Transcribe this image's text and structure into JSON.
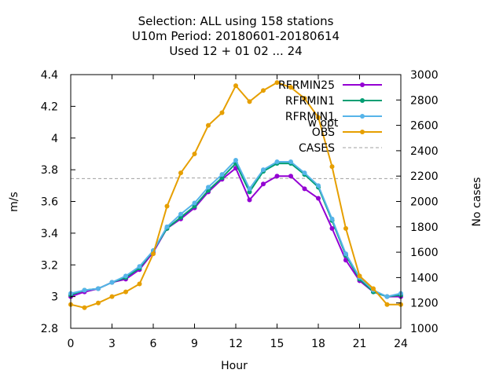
{
  "chart_data": {
    "type": "line",
    "title_lines": [
      "Selection: ALL using   158 stations",
      "U10m   Period: 20180601-20180614",
      "Used  12 + 01 02 ... 24"
    ],
    "xlabel": "Hour",
    "ylabel": "m/s",
    "y2label": "No cases",
    "xlim": [
      0,
      24
    ],
    "ylim": [
      2.8,
      4.4
    ],
    "y2lim": [
      1000,
      3000
    ],
    "xticks": [
      0,
      3,
      6,
      9,
      12,
      15,
      18,
      21,
      24
    ],
    "yticks": [
      2.8,
      3.0,
      3.2,
      3.4,
      3.6,
      3.8,
      4.0,
      4.2,
      4.4
    ],
    "ytick_labels": [
      "2.8",
      "3",
      "3.2",
      "3.4",
      "3.6",
      "3.8",
      "4",
      "4.2",
      "4.4"
    ],
    "y2ticks": [
      1000,
      1200,
      1400,
      1600,
      1800,
      2000,
      2200,
      2400,
      2600,
      2800,
      3000
    ],
    "grid": false,
    "legend_position": "top-right",
    "x": [
      0,
      1,
      2,
      3,
      4,
      5,
      6,
      7,
      8,
      9,
      10,
      11,
      12,
      13,
      14,
      15,
      16,
      17,
      18,
      19,
      20,
      21,
      22,
      23,
      24
    ],
    "series": [
      {
        "name": "RFRMIN25",
        "axis": "y1",
        "color": "#9400d3",
        "style": "line-points",
        "values": [
          3.0,
          3.03,
          3.05,
          3.09,
          3.11,
          3.17,
          3.28,
          3.43,
          3.49,
          3.56,
          3.66,
          3.74,
          3.81,
          3.61,
          3.71,
          3.76,
          3.76,
          3.68,
          3.62,
          3.43,
          3.23,
          3.1,
          3.03,
          3.0,
          3.0
        ]
      },
      {
        "name": "RFRMIN1",
        "axis": "y1",
        "color": "#009e73",
        "style": "line-points",
        "values": [
          3.01,
          3.04,
          3.05,
          3.09,
          3.12,
          3.18,
          3.29,
          3.43,
          3.5,
          3.57,
          3.67,
          3.75,
          3.84,
          3.66,
          3.79,
          3.84,
          3.84,
          3.77,
          3.69,
          3.48,
          3.26,
          3.11,
          3.03,
          3.0,
          3.01
        ]
      },
      {
        "name": "RFRMIN1",
        "name_suffix": "w opt",
        "axis": "y1",
        "color": "#56b4e9",
        "style": "line-points",
        "values": [
          3.02,
          3.04,
          3.05,
          3.09,
          3.13,
          3.19,
          3.29,
          3.44,
          3.52,
          3.59,
          3.69,
          3.77,
          3.86,
          3.68,
          3.8,
          3.85,
          3.85,
          3.78,
          3.7,
          3.49,
          3.27,
          3.12,
          3.04,
          3.0,
          3.02
        ]
      },
      {
        "name": "OBS",
        "axis": "y1",
        "color": "#e69f00",
        "style": "line-points",
        "values": [
          2.95,
          2.93,
          2.96,
          3.0,
          3.03,
          3.08,
          3.27,
          3.57,
          3.78,
          3.9,
          4.08,
          4.16,
          4.33,
          4.23,
          4.3,
          4.35,
          4.32,
          4.25,
          4.13,
          3.82,
          3.43,
          3.13,
          3.05,
          2.95,
          2.95
        ]
      },
      {
        "name": "CASES",
        "axis": "y2",
        "color": "#a0a0a0",
        "style": "dashed",
        "values": [
          2180,
          2180,
          2180,
          2180,
          2180,
          2180,
          2182,
          2185,
          2185,
          2185,
          2185,
          2185,
          2185,
          2184,
          2183,
          2182,
          2182,
          2182,
          2180,
          2180,
          2180,
          2176,
          2180,
          2180,
          2180
        ]
      }
    ]
  }
}
